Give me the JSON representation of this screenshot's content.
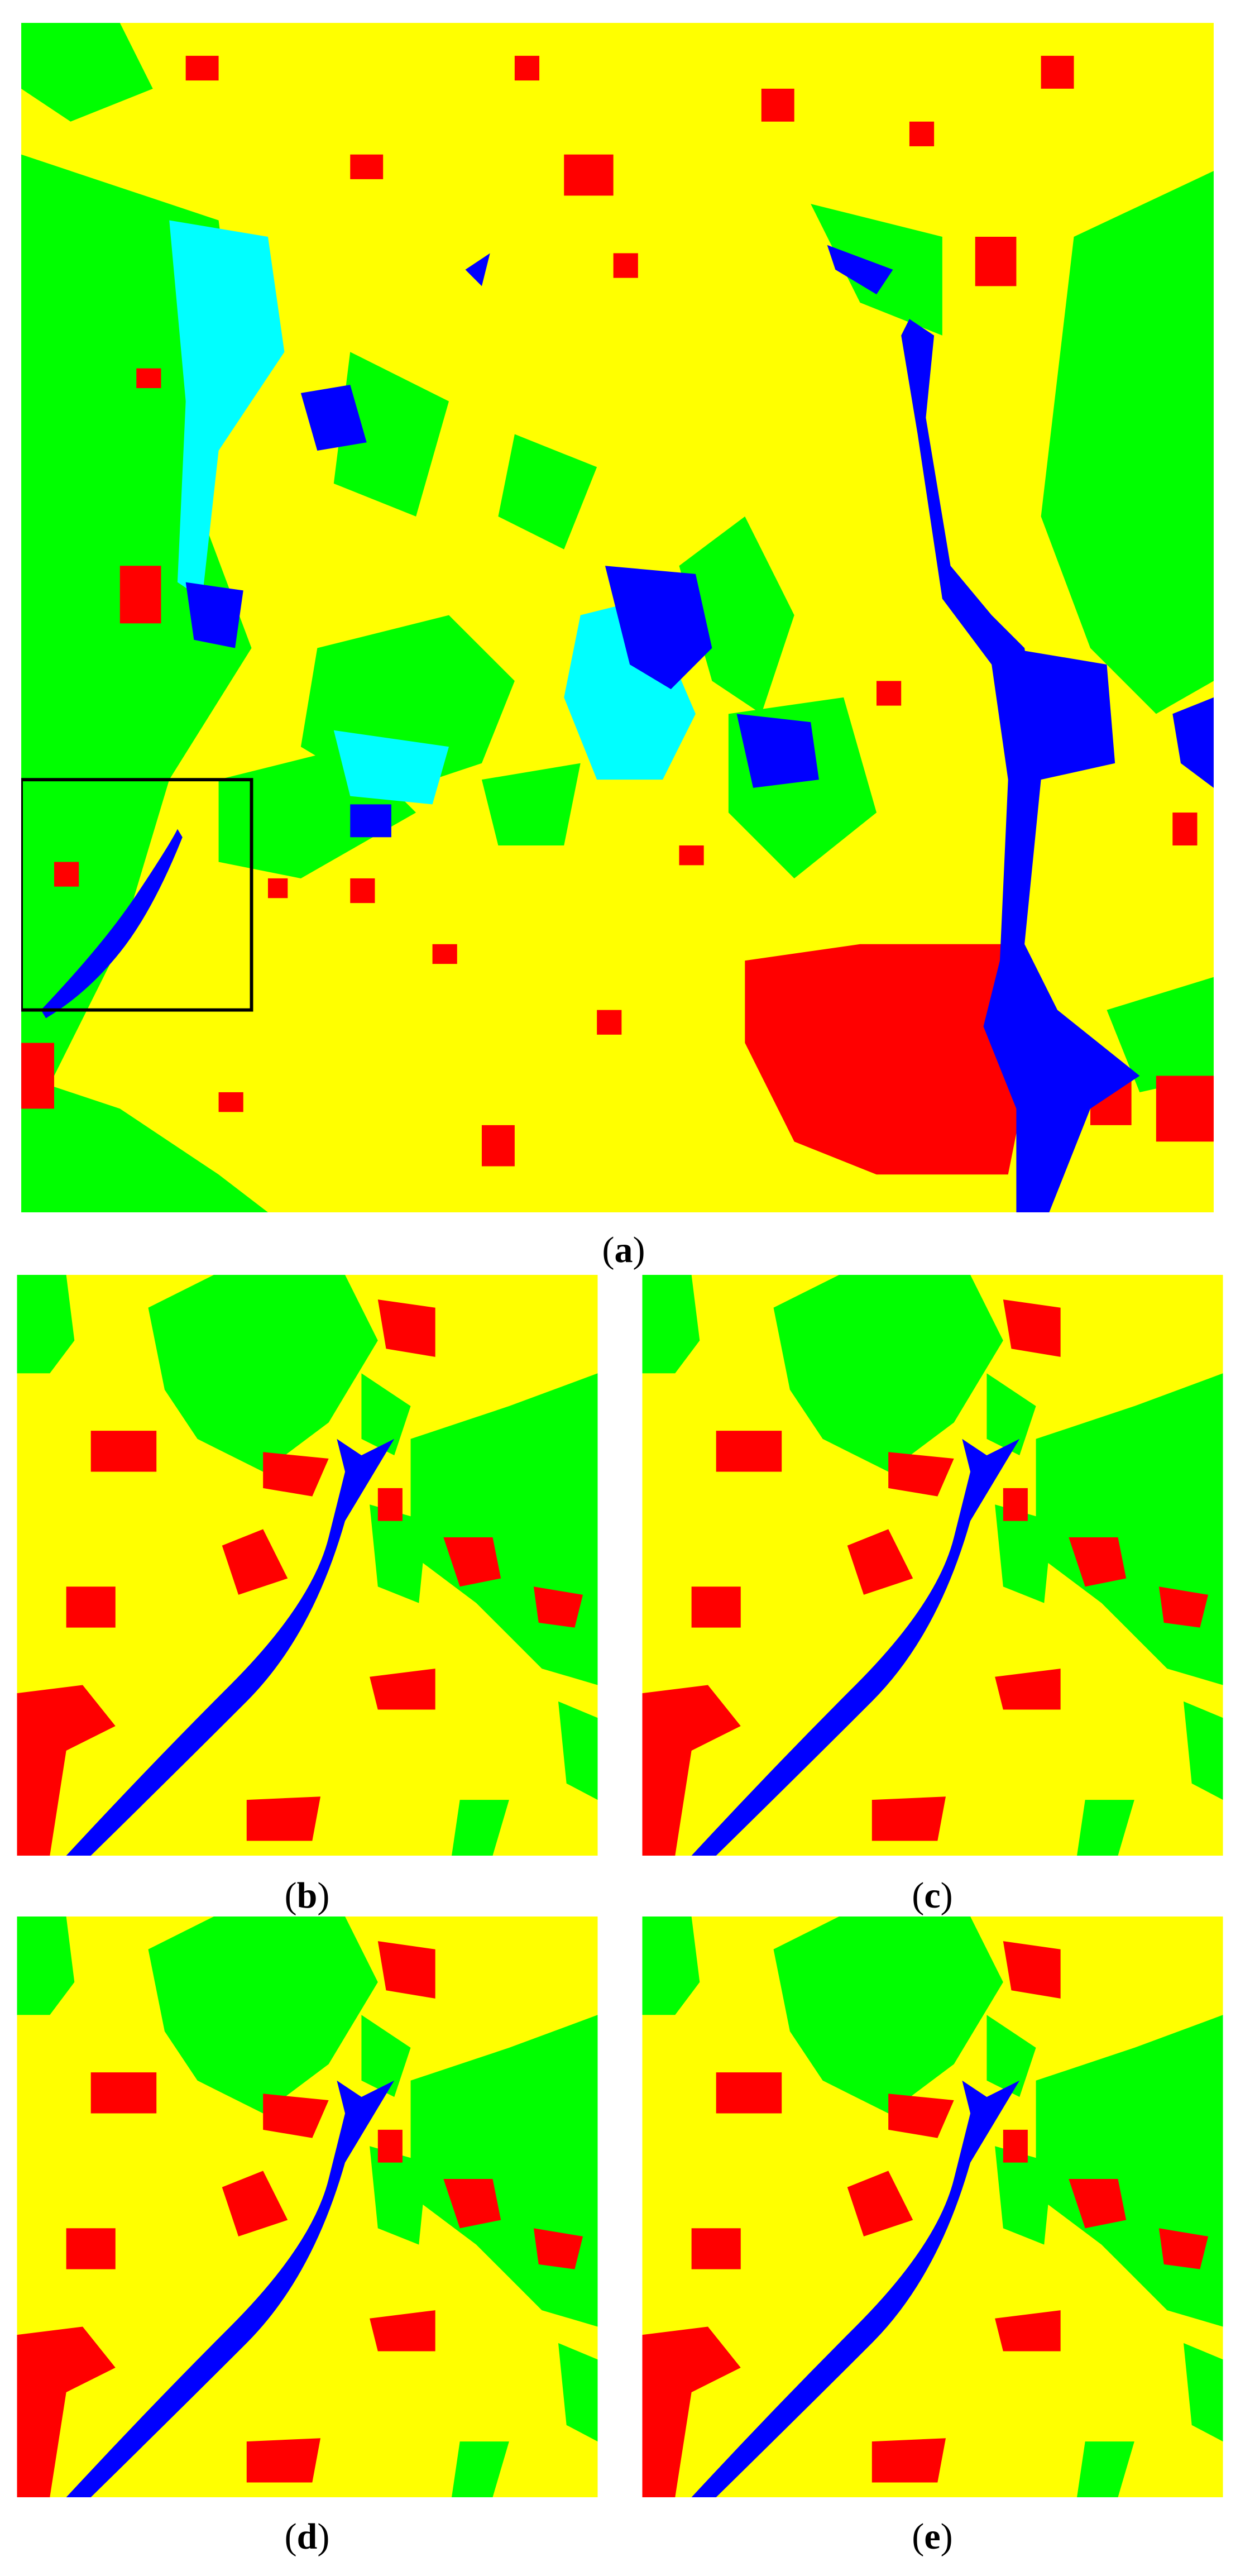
{
  "panels": [
    {
      "label": [
        "(",
        "a",
        ")"
      ]
    },
    {
      "label": [
        "(",
        "b",
        ")"
      ]
    },
    {
      "label": [
        "(",
        "c",
        ")"
      ]
    },
    {
      "label": [
        "(",
        "d",
        ")"
      ]
    },
    {
      "label": [
        "(",
        "e",
        ")"
      ]
    }
  ]
}
